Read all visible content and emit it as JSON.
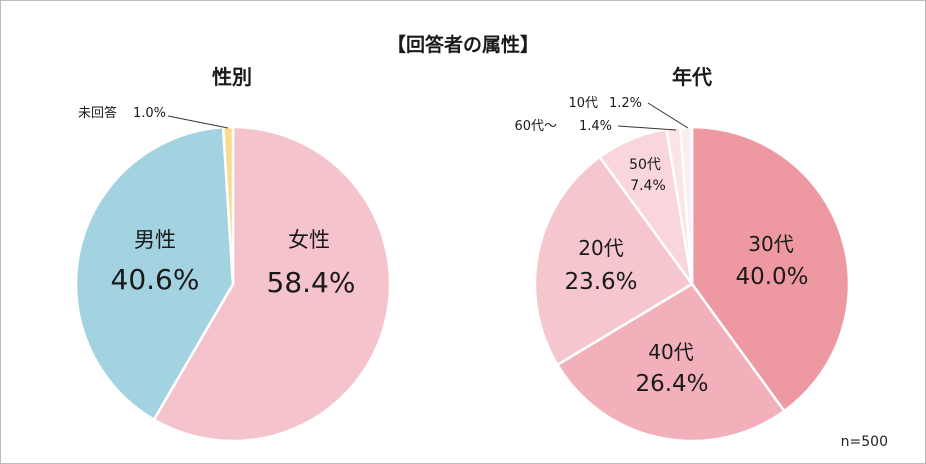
{
  "title": "【回答者の属性】",
  "note": "n=500",
  "colors": {
    "female": "#f5c3cb",
    "male": "#a3d3e0",
    "unanswered": "#fbd98d",
    "age30": "#ee98a2",
    "age40": "#f2b0ba",
    "age20": "#f6c6ce",
    "age50": "#f8d6db",
    "age60": "#fbe3e6",
    "age10": "#fcedf0"
  },
  "chart_data": [
    {
      "type": "pie",
      "title": "性別",
      "slices": [
        {
          "name": "女性",
          "value": 58.4,
          "label": "58.4%"
        },
        {
          "name": "男性",
          "value": 40.6,
          "label": "40.6%"
        },
        {
          "name": "未回答",
          "value": 1.0,
          "label": "1.0%"
        }
      ]
    },
    {
      "type": "pie",
      "title": "年代",
      "slices": [
        {
          "name": "30代",
          "value": 40.0,
          "label": "40.0%"
        },
        {
          "name": "40代",
          "value": 26.4,
          "label": "26.4%"
        },
        {
          "name": "20代",
          "value": 23.6,
          "label": "23.6%"
        },
        {
          "name": "50代",
          "value": 7.4,
          "label": "7.4%"
        },
        {
          "name": "60代～",
          "value": 1.4,
          "label": "1.4%"
        },
        {
          "name": "10代",
          "value": 1.2,
          "label": "1.2%"
        }
      ]
    }
  ]
}
